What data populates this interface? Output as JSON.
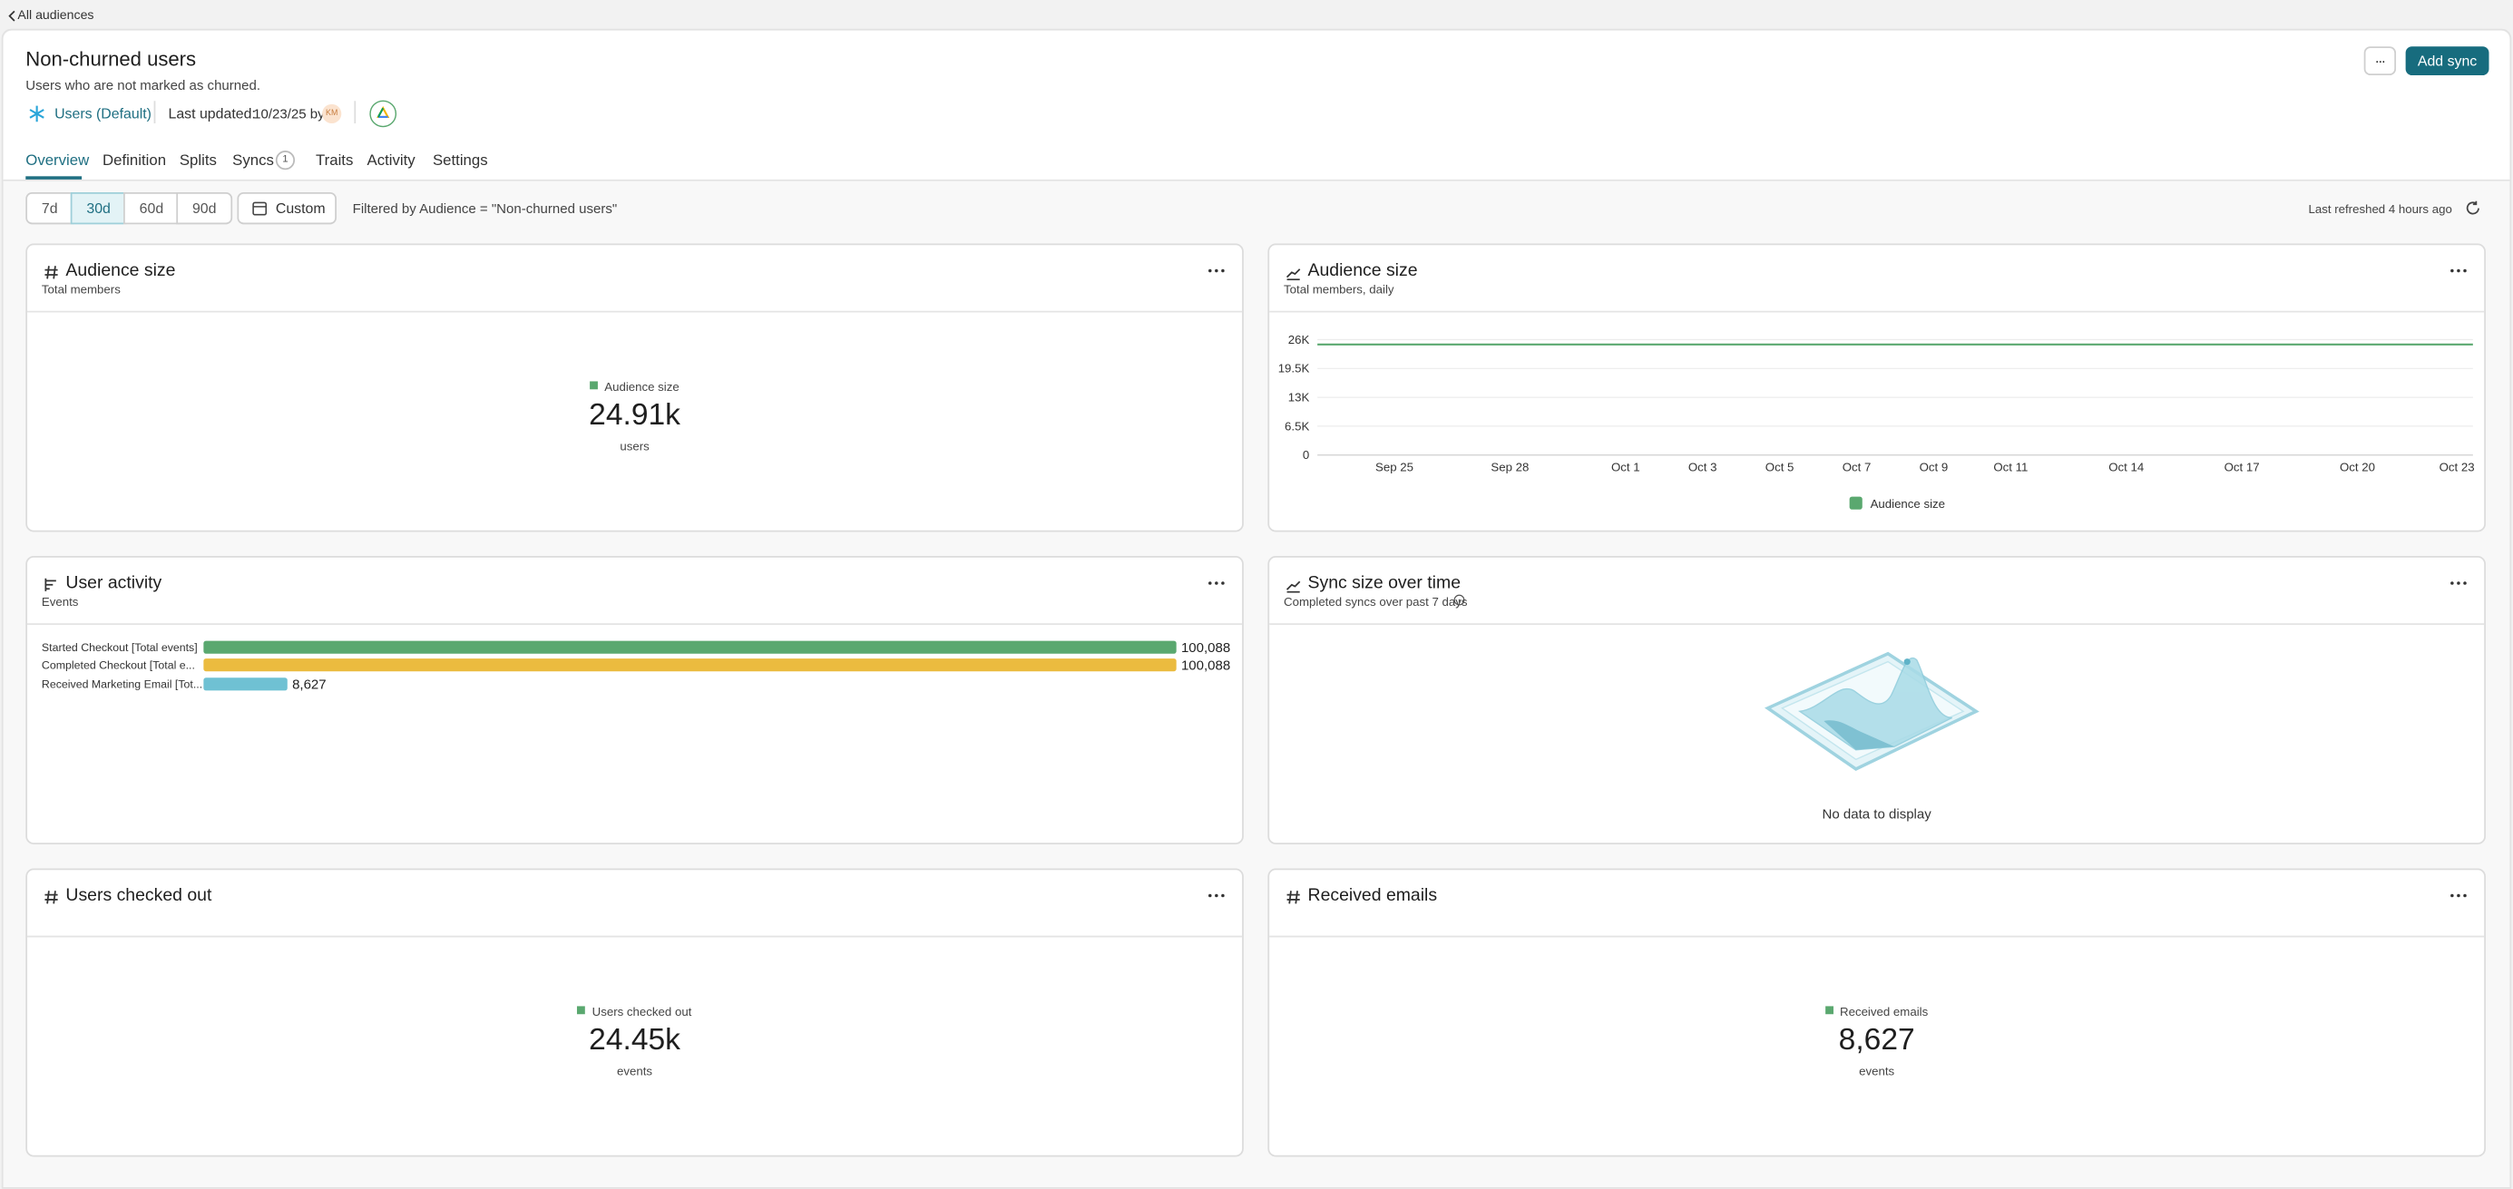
{
  "breadcrumb": "All audiences",
  "header": {
    "title": "Non-churned users",
    "description": "Users who are not marked as churned.",
    "model": "Users (Default)",
    "last_updated_label": "Last updated:",
    "last_updated": "10/23/25 by",
    "avatar": "KM",
    "more": "...",
    "action": "Add sync"
  },
  "tabs": [
    {
      "label": "Overview",
      "active": true
    },
    {
      "label": "Definition"
    },
    {
      "label": "Splits"
    },
    {
      "label": "Syncs",
      "badge": "1"
    },
    {
      "label": "Traits"
    },
    {
      "label": "Activity"
    },
    {
      "label": "Settings"
    }
  ],
  "filters": {
    "ranges": [
      "7d",
      "30d",
      "60d",
      "90d"
    ],
    "active_range": 1,
    "custom": "Custom",
    "filter_text": "Filtered by Audience = \"Non-churned users\"",
    "refreshed": "Last refreshed 4 hours ago"
  },
  "panels": [
    {
      "title": "Audience size",
      "subtitle": "Total members",
      "legend": "Audience size",
      "value": "24.91k",
      "unit": "users"
    },
    {
      "title": "Audience size",
      "subtitle": "Total members, daily",
      "chart_data": {
        "type": "line",
        "categories": [
          null,
          null,
          "Sep 25",
          null,
          null,
          "Sep 28",
          null,
          null,
          "Oct 1",
          null,
          "Oct 3",
          null,
          "Oct 5",
          null,
          "Oct 7",
          null,
          "Oct 9",
          null,
          "Oct 11",
          null,
          null,
          "Oct 14",
          null,
          null,
          "Oct 17",
          null,
          null,
          "Oct 20",
          null,
          null,
          "Oct 23"
        ],
        "series": [
          {
            "name": "Audience size",
            "color": "#5aa86f",
            "values": [
              24910,
              24910,
              24910,
              24910,
              24910,
              24910,
              24910,
              24910,
              24910,
              24910,
              24910,
              24910,
              24910,
              24910,
              24910,
              24910,
              24910,
              24910,
              24910,
              24910,
              24910,
              24910,
              24910,
              24910,
              24910,
              24910,
              24910,
              24910,
              24910,
              24910,
              24910
            ]
          }
        ],
        "ylim": [
          0,
          26000
        ],
        "yticks": [
          0,
          {
            "value": 6500,
            "label": "6.5K"
          },
          {
            "value": 13000,
            "label": "13K"
          },
          {
            "value": 19500,
            "label": "19.5K"
          },
          {
            "value": 26000,
            "label": "26K"
          }
        ],
        "grid": true,
        "legend": "bottom"
      }
    },
    {
      "title": "User activity",
      "subtitle": "Events",
      "chart_data": {
        "type": "hbar",
        "categories": [
          "Started Checkout [Total events]",
          "Completed Checkout [Total e...",
          "Received Marketing Email [Tot..."
        ],
        "values": [
          100088,
          100088,
          8627
        ],
        "value_labels": [
          "100,088",
          "100,088",
          "8,627"
        ],
        "colors": [
          "#5aa86f",
          "#ebbb3f",
          "#6fc1d3"
        ]
      }
    },
    {
      "title": "Sync size over time",
      "subtitle": "Completed syncs over past 7 days",
      "empty": "No data to display"
    },
    {
      "title": "Users checked out",
      "legend": "Users checked out",
      "value": "24.45k",
      "unit": "events"
    },
    {
      "title": "Received emails",
      "legend": "Received emails",
      "value": "8,627",
      "unit": "events"
    }
  ]
}
